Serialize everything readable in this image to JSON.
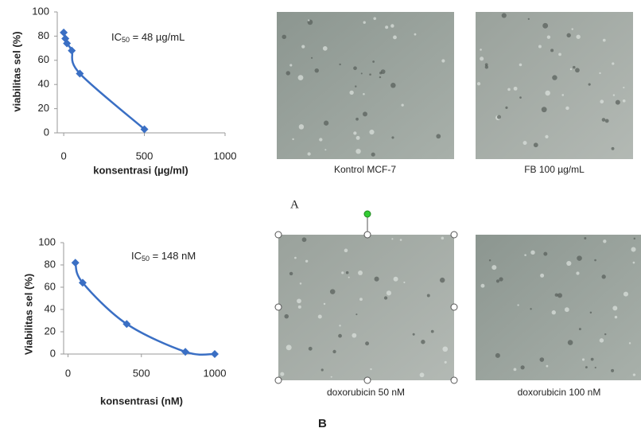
{
  "chart_data": [
    {
      "type": "line",
      "x_label": "konsentrasi (µg/ml)",
      "y_label": "viabilitas sel (%)",
      "annotation": {
        "prefix": "IC",
        "sub": "50",
        "rest": " = 48 µg/mL"
      },
      "x": [
        0,
        10,
        20,
        50,
        100,
        500
      ],
      "series": [
        {
          "color": "#3a6fc4",
          "values": [
            83,
            78,
            74,
            68,
            49,
            3
          ]
        }
      ],
      "xlim": [
        -40,
        1000
      ],
      "ylim": [
        0,
        100
      ],
      "xticks": [
        0,
        500,
        1000
      ],
      "yticks": [
        0,
        20,
        40,
        60,
        80,
        100
      ]
    },
    {
      "type": "line",
      "x_label": "konsentrasi (nM)",
      "y_label": "Viabilitas sel (%)",
      "annotation": {
        "prefix": "IC",
        "sub": "50",
        "rest": " = 148 nM"
      },
      "x": [
        50,
        100,
        400,
        800,
        1000
      ],
      "series": [
        {
          "color": "#3a6fc4",
          "values": [
            82,
            64,
            27,
            2,
            0
          ]
        }
      ],
      "xlim": [
        -30,
        1000
      ],
      "ylim": [
        0,
        100
      ],
      "xticks": [
        0,
        500,
        1000
      ],
      "yticks": [
        0,
        20,
        40,
        60,
        80,
        100
      ]
    }
  ],
  "panels": {
    "captions": [
      "Kontrol MCF-7",
      "FB 100 µg/mL",
      "doxorubicin 50 nM",
      "doxorubicin 100 nM"
    ],
    "label_a": "A",
    "label_b": "B"
  }
}
